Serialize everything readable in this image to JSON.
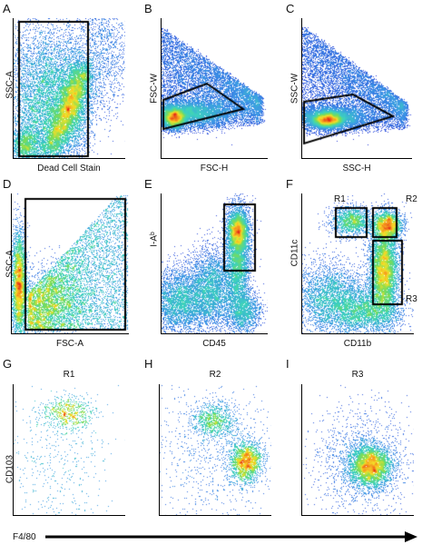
{
  "panels": {
    "A": {
      "letter": "A",
      "xlabel": "Dead Cell Stain",
      "ylabel": "SSC-A"
    },
    "B": {
      "letter": "B",
      "xlabel": "FSC-H",
      "ylabel": "FSC-W"
    },
    "C": {
      "letter": "C",
      "xlabel": "SSC-H",
      "ylabel": "SSC-W"
    },
    "D": {
      "letter": "D",
      "xlabel": "FSC-A",
      "ylabel": "SSC-A"
    },
    "E": {
      "letter": "E",
      "xlabel": "CD45",
      "ylabel": "I-Aᵇ"
    },
    "F": {
      "letter": "F",
      "xlabel": "CD11b",
      "ylabel": "CD11c",
      "gates": {
        "r1": "R1",
        "r2": "R2",
        "r3": "R3"
      }
    },
    "G": {
      "letter": "G",
      "title": "R1",
      "ylabel": "CD103"
    },
    "H": {
      "letter": "H",
      "title": "R2"
    },
    "I": {
      "letter": "I",
      "title": "R3"
    }
  },
  "bottom_axis": {
    "label": "F4/80"
  },
  "colors": {
    "density_low": "#2b2bd6",
    "density_mid": "#3fd3c8",
    "density_high": "#f5e52a",
    "density_peak": "#e5231b",
    "gate": "#000000"
  }
}
